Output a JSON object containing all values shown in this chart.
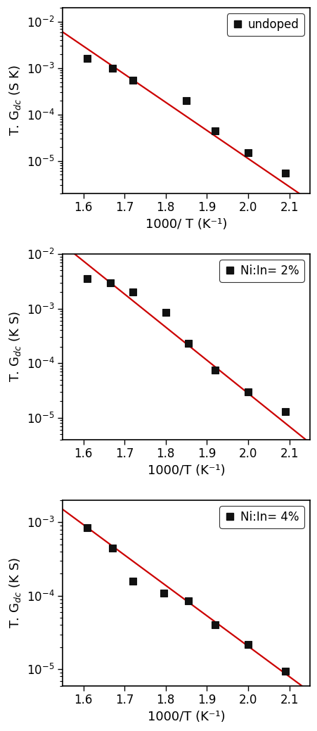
{
  "panels": [
    {
      "label": "undoped",
      "xlabel": "1000/ T (K⁻¹)",
      "ylabel": "T. G$_{dc}$ (S K)",
      "x_data": [
        1.61,
        1.67,
        1.72,
        1.85,
        1.92,
        2.0,
        2.09
      ],
      "y_data": [
        0.0016,
        0.001,
        0.00055,
        0.0002,
        4.5e-05,
        1.5e-05,
        5.5e-06
      ],
      "fit_x": [
        1.55,
        2.16
      ],
      "fit_y": [
        0.006,
        1.2e-06
      ],
      "ylim": [
        2e-06,
        0.02
      ],
      "xlim": [
        1.55,
        2.15
      ],
      "ytick_locs": [
        1e-05,
        0.0001,
        0.001,
        0.01
      ],
      "ytick_labels": [
        "10$^{-5}$",
        "10$^{-4}$",
        "10$^{-3}$",
        "10$^{-2}$"
      ],
      "xticks": [
        1.6,
        1.7,
        1.8,
        1.9,
        2.0,
        2.1
      ]
    },
    {
      "label": "Ni:In= 2%",
      "xlabel": "1000/T (K⁻¹)",
      "ylabel": "T. G$_{dc}$ (K S)",
      "x_data": [
        1.61,
        1.665,
        1.72,
        1.8,
        1.855,
        1.92,
        2.0,
        2.09
      ],
      "y_data": [
        0.0035,
        0.003,
        0.002,
        0.00085,
        0.00023,
        7.5e-05,
        3e-05,
        1.3e-05
      ],
      "fit_x": [
        1.55,
        2.16
      ],
      "fit_y": [
        0.015,
        3e-06
      ],
      "ylim": [
        4e-06,
        0.01
      ],
      "xlim": [
        1.55,
        2.15
      ],
      "ytick_locs": [
        1e-05,
        0.0001,
        0.001,
        0.01
      ],
      "ytick_labels": [
        "10$^{-5}$",
        "10$^{-4}$",
        "10$^{-3}$",
        "10$^{-2}$"
      ],
      "xticks": [
        1.6,
        1.7,
        1.8,
        1.9,
        2.0,
        2.1
      ]
    },
    {
      "label": "Ni:In= 4%",
      "xlabel": "1000/T (K⁻¹)",
      "ylabel": "T. G$_{dc}$ (K S)",
      "x_data": [
        1.61,
        1.67,
        1.72,
        1.795,
        1.855,
        1.92,
        2.0,
        2.09
      ],
      "y_data": [
        0.00085,
        0.00045,
        0.00016,
        0.00011,
        8.5e-05,
        4e-05,
        2.2e-05,
        9.5e-06
      ],
      "fit_x": [
        1.55,
        2.16
      ],
      "fit_y": [
        0.0015,
        4.5e-06
      ],
      "ylim": [
        6e-06,
        0.002
      ],
      "xlim": [
        1.55,
        2.15
      ],
      "ytick_locs": [
        1e-05,
        0.0001,
        0.001
      ],
      "ytick_labels": [
        "10$^{-5}$",
        "10$^{-4}$",
        "10$^{-3}$"
      ],
      "xticks": [
        1.6,
        1.7,
        1.8,
        1.9,
        2.0,
        2.1
      ]
    }
  ],
  "marker_color": "#111111",
  "marker_size": 7,
  "line_color": "#cc0000",
  "line_width": 1.6,
  "background_color": "#ffffff",
  "tick_label_fontsize": 12,
  "axis_label_fontsize": 13,
  "legend_fontsize": 12,
  "spine_linewidth": 1.2
}
